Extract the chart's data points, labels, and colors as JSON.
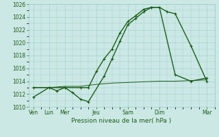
{
  "background_color": "#cce8e4",
  "grid_color": "#99cccc",
  "line_color": "#1a5c1a",
  "title": "Pression niveau de la mer( hPa )",
  "ylim": [
    1010,
    1026
  ],
  "yticks": [
    1010,
    1012,
    1014,
    1016,
    1018,
    1020,
    1022,
    1024,
    1026
  ],
  "x_tick_positions": [
    0,
    1,
    2,
    4,
    6,
    8,
    11
  ],
  "x_tick_labels": [
    "Ven",
    "Lun",
    "Mer",
    "Jeu",
    "Sam",
    "Dim",
    "Mar"
  ],
  "xlim": [
    -0.3,
    11.5
  ],
  "series": [
    {
      "name": "line1_upper",
      "x": [
        0,
        1,
        2,
        3,
        3.5,
        4,
        4.5,
        5,
        5.5,
        6,
        6.5,
        7,
        7.5,
        8,
        8.5,
        9,
        10,
        11
      ],
      "y": [
        1011.5,
        1013,
        1013,
        1013,
        1013,
        1015.5,
        1017.5,
        1019,
        1021.5,
        1023.3,
        1024.2,
        1025.2,
        1025.5,
        1025.5,
        1024.8,
        1024.5,
        1019.5,
        1014.0
      ],
      "marker": true,
      "lw": 1.0
    },
    {
      "name": "line2_lower",
      "x": [
        0,
        1,
        1.5,
        2,
        2.5,
        3,
        3.5,
        4.5,
        5,
        5.5,
        6,
        6.5,
        7,
        7.5,
        8,
        9,
        10,
        11
      ],
      "y": [
        1013,
        1013,
        1012.5,
        1013,
        1012.2,
        1011.2,
        1010.8,
        1014.8,
        1017.5,
        1020.2,
        1022.8,
        1023.8,
        1024.8,
        1025.5,
        1025.5,
        1015.0,
        1014.0,
        1014.5
      ],
      "marker": true,
      "lw": 1.0
    },
    {
      "name": "line3_flat",
      "x": [
        0,
        1,
        2,
        3,
        4,
        5,
        6,
        7,
        8,
        9,
        10,
        11
      ],
      "y": [
        1013.0,
        1013.0,
        1013.2,
        1013.2,
        1013.5,
        1013.7,
        1013.8,
        1013.9,
        1014.0,
        1014.0,
        1014.1,
        1014.2
      ],
      "marker": false,
      "lw": 0.7
    }
  ]
}
